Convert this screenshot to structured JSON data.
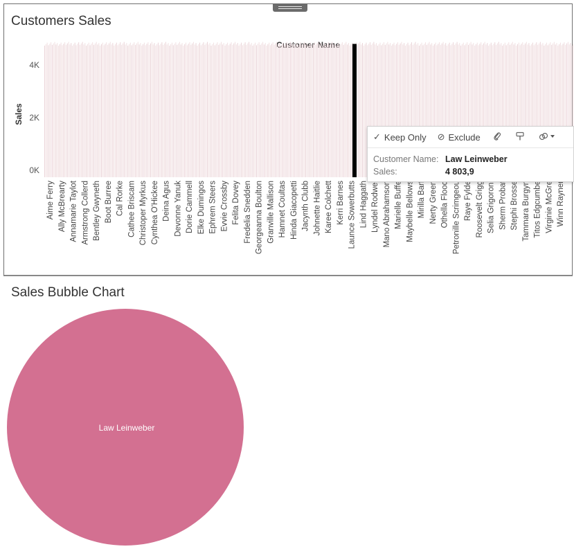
{
  "panels": {
    "bar_title": "Customers Sales",
    "bubble_title": "Sales Bubble Chart"
  },
  "chart_data": [
    {
      "type": "bar",
      "title": "Customers Sales",
      "xlabel": "Customer Name",
      "ylabel": "Sales",
      "ylim": [
        0,
        4500
      ],
      "y_ticks": [
        {
          "value": 0,
          "label": "0K"
        },
        {
          "value": 2000,
          "label": "2K"
        },
        {
          "value": 4000,
          "label": "4K"
        }
      ],
      "categories": [
        "Aime Ferry",
        "Ally McBrearty",
        "Annamarie Taylot",
        "Armstrong Collerd",
        "Bentley Gwyneth",
        "Boot Burree",
        "Cal Rorke",
        "Cathee Briscam",
        "Christoper Myrkus",
        "Cynthea O'Hickee",
        "Deina Agus",
        "Devonne Yanuk",
        "Dorie Cammell",
        "Elke Dumingos",
        "Ephrem Steers",
        "Evvie Crossby",
        "Felita Dovey",
        "Fredelia Snedden",
        "Georgeanna Boulton",
        "Granville Mallison",
        "Hamnet Coultas",
        "Hinda Giacopetti",
        "Jacynth Clubb",
        "Johnette Haitlie",
        "Karee Colchett",
        "Kerri Barnes",
        "Launce Sowerbutts",
        "Lind Haggath",
        "Lyndel Rodwel",
        "Mano Abrahamson",
        "Marielle Buffe",
        "Maybelle Bellows",
        "Mirilla Barf",
        "Nerty Green",
        "Othella Flood",
        "Petronille Scrimgeou",
        "Raye Fylde",
        "Roosevelt Grigg",
        "Selia Grigoroni",
        "Sherm Probat",
        "Stephi Brosse",
        "Tammara Burgyn",
        "Titos Edgcumbe",
        "Virginie McGre",
        "Winn Rayner"
      ],
      "background_bar_value": 4800,
      "bar_color": "#f1dfe1",
      "highlight": {
        "customer_name": "Law Leinweber",
        "value": 4803.9,
        "color": "#000000"
      }
    },
    {
      "type": "scatter",
      "title": "Sales Bubble Chart",
      "points": [
        {
          "label": "Law Leinweber",
          "size": 4803.9
        }
      ],
      "color": "#d37091"
    }
  ],
  "tooltip": {
    "keep_only_label": "Keep Only",
    "exclude_label": "Exclude",
    "field1_key": "Customer Name:",
    "field1_value": "Law Leinweber",
    "field2_key": "Sales:",
    "field2_value": "4 803,9"
  }
}
